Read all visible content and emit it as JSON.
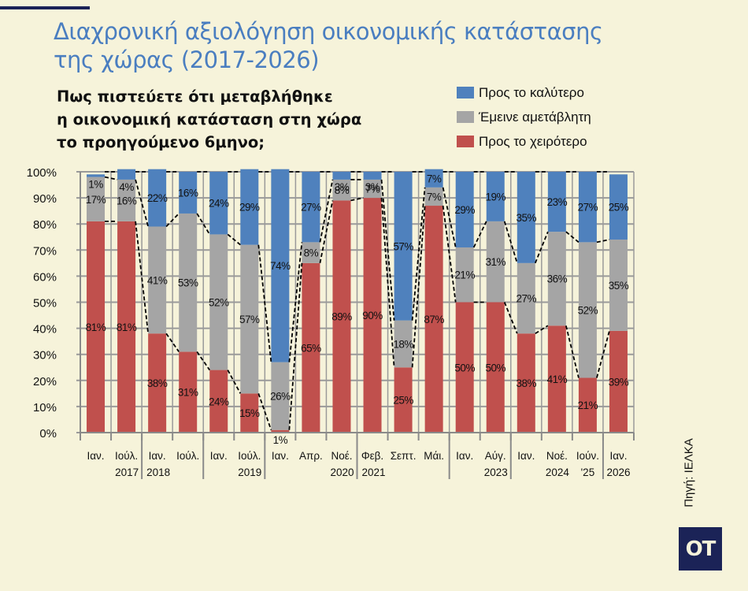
{
  "header": {
    "title_line1": "Διαχρονική αξιολόγηση οικονομικής κατάστασης",
    "title_line2": "της χώρας (2017-2026)",
    "question_line1": "Πως πιστεύετε ότι μεταβλήθηκε",
    "question_line2": "η οικονομική κατάσταση στη χώρα",
    "question_line3": "το προηγούμενο 6μηνο;"
  },
  "source": "Πηγή: ΙΕΛΚΑ",
  "logo": "OT",
  "colors": {
    "better": "#4f81bd",
    "same": "#a5a5a5",
    "worse": "#c0504d",
    "title": "#4a7ec0",
    "background": "#f6f3da",
    "logo_bg": "#1b2357"
  },
  "chart_data": {
    "type": "bar",
    "stacked": true,
    "title": "Διαχρονική αξιολόγηση οικονομικής κατάστασης της χώρας (2017-2026)",
    "subtitle": "Πως πιστεύετε ότι μεταβλήθηκε η οικονομική κατάσταση στη χώρα το προηγούμενο 6μηνο;",
    "legend_position": "top-right",
    "grid": true,
    "ylim": [
      0,
      100
    ],
    "yticks": [
      "0%",
      "10%",
      "20%",
      "30%",
      "40%",
      "50%",
      "60%",
      "70%",
      "80%",
      "90%",
      "100%"
    ],
    "categories": [
      "Ιαν.",
      "Ιούλ.",
      "Ιαν.",
      "Ιούλ.",
      "Ιαν.",
      "Ιούλ.",
      "Ιαν.",
      "Απρ.",
      "Νοέ.",
      "Φεβ.",
      "Σεπτ.",
      "Μάι.",
      "Ιαν.",
      "Αύγ.",
      "Ιαν.",
      "Νοέ.",
      "Ιούν.",
      "Ιαν."
    ],
    "groups": [
      {
        "label": "2017",
        "start": 0,
        "end": 1
      },
      {
        "label": "2018",
        "start": 2,
        "end": 3
      },
      {
        "label": "2019",
        "start": 4,
        "end": 5
      },
      {
        "label": "2020",
        "start": 6,
        "end": 8
      },
      {
        "label": "2021",
        "start": 9,
        "end": 11
      },
      {
        "label": "2023",
        "start": 12,
        "end": 13
      },
      {
        "label": "2024",
        "start": 14,
        "end": 15
      },
      {
        "label": "'25",
        "start": 16,
        "end": 16
      },
      {
        "label": "2026",
        "start": 17,
        "end": 17
      }
    ],
    "series": [
      {
        "name": "Προς το χειρότερο",
        "key": "worse",
        "values": [
          81,
          81,
          38,
          31,
          24,
          15,
          1,
          65,
          89,
          90,
          25,
          87,
          50,
          50,
          38,
          41,
          21,
          39
        ]
      },
      {
        "name": "Έμεινε αμετάβλητη",
        "key": "same",
        "values": [
          17,
          16,
          41,
          53,
          52,
          57,
          26,
          8,
          8,
          7,
          18,
          7,
          21,
          31,
          27,
          36,
          52,
          35
        ]
      },
      {
        "name": "Προς το καλύτερο",
        "key": "better",
        "values": [
          1,
          4,
          22,
          16,
          24,
          29,
          74,
          27,
          3,
          3,
          57,
          7,
          29,
          19,
          35,
          23,
          27,
          25
        ]
      }
    ],
    "legend_order": [
      "Προς το καλύτερο",
      "Έμεινε αμετάβλητη",
      "Προς το χειρότερο"
    ]
  }
}
